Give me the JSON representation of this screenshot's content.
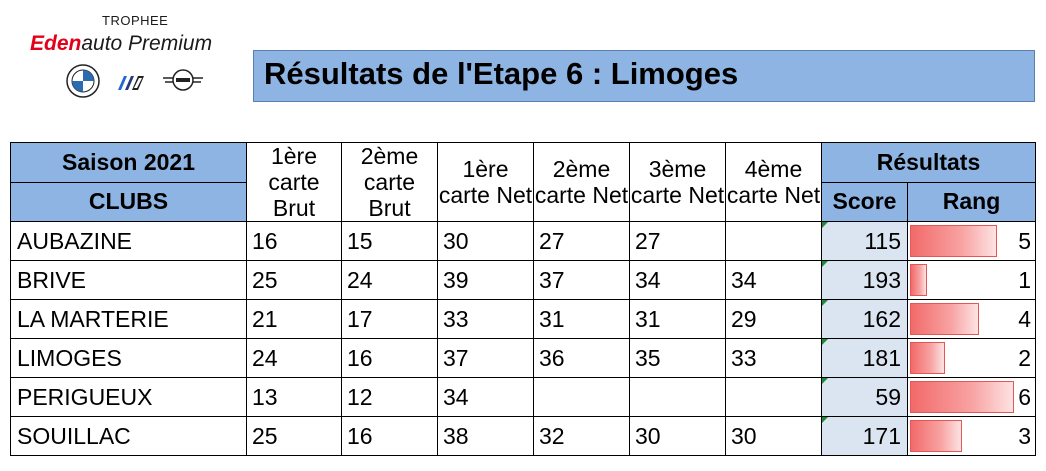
{
  "logo": {
    "trophee": "TROPHEE",
    "brand_eden": "Eden",
    "brand_auto": "auto",
    "brand_premium": " Premium",
    "marks": [
      "bmw-logo-icon",
      "bmw-m-logo-icon",
      "mini-logo-icon"
    ]
  },
  "title": "Résultats de l'Etape 6 : Limoges",
  "colors": {
    "header_blue": "#8eb4e3",
    "score_bg": "#dbe5f1",
    "rank_bar": "#f26a6a",
    "brand_red": "#e2001a"
  },
  "table": {
    "season": "Saison 2021",
    "clubs_header": "CLUBS",
    "columns": [
      "1ère carte Brut",
      "2ème carte Brut",
      "1ère carte Net",
      "2ème carte Net",
      "3ème carte Net",
      "4ème carte Net"
    ],
    "results_header": "Résultats",
    "score_header": "Score",
    "rank_header": "Rang",
    "rows": [
      {
        "club": "AUBAZINE",
        "cells": [
          "16",
          "15",
          "30",
          "27",
          "27",
          ""
        ],
        "score": "115",
        "rank": "5",
        "rank_num": 5
      },
      {
        "club": "BRIVE",
        "cells": [
          "25",
          "24",
          "39",
          "37",
          "34",
          "34"
        ],
        "score": "193",
        "rank": "1",
        "rank_num": 1
      },
      {
        "club": "LA MARTERIE",
        "cells": [
          "21",
          "17",
          "33",
          "31",
          "31",
          "29"
        ],
        "score": "162",
        "rank": "4",
        "rank_num": 4
      },
      {
        "club": "LIMOGES",
        "cells": [
          "24",
          "16",
          "37",
          "36",
          "35",
          "33"
        ],
        "score": "181",
        "rank": "2",
        "rank_num": 2
      },
      {
        "club": "PERIGUEUX",
        "cells": [
          "13",
          "12",
          "34",
          "",
          "",
          ""
        ],
        "score": "59",
        "rank": "6",
        "rank_num": 6
      },
      {
        "club": "SOUILLAC",
        "cells": [
          "25",
          "16",
          "38",
          "32",
          "30",
          "30"
        ],
        "score": "171",
        "rank": "3",
        "rank_num": 3
      }
    ],
    "rank_max": 6
  }
}
